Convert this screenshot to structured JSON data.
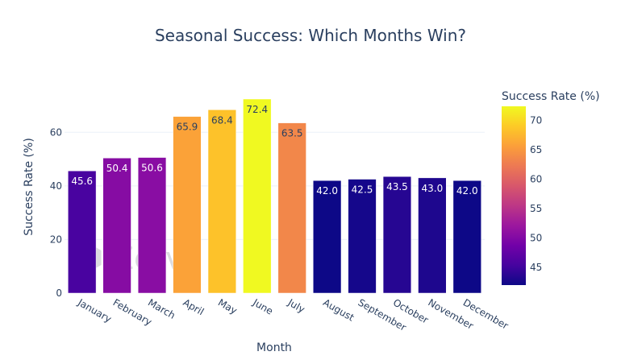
{
  "chart_data": {
    "type": "bar",
    "title": "Seasonal Success: Which Months Win?",
    "xlabel": "Month",
    "ylabel": "Success Rate (%)",
    "categories": [
      "January",
      "February",
      "March",
      "April",
      "May",
      "June",
      "July",
      "August",
      "September",
      "October",
      "November",
      "December"
    ],
    "values": [
      45.6,
      50.4,
      50.6,
      65.9,
      68.4,
      72.4,
      63.5,
      42.0,
      42.5,
      43.5,
      43.0,
      42.0
    ],
    "value_labels": [
      "45.6",
      "50.4",
      "50.6",
      "65.9",
      "68.4",
      "72.4",
      "63.5",
      "42.0",
      "42.5",
      "43.5",
      "43.0",
      "42.0"
    ],
    "ylim": [
      0,
      75.7
    ],
    "yticks": [
      0,
      20,
      40,
      60
    ],
    "ytick_labels": [
      "0",
      "20",
      "40",
      "60"
    ],
    "grid": true,
    "colorscale": "plasma",
    "colorbar": {
      "title": "Success Rate (%)",
      "range": [
        42.0,
        72.4
      ],
      "ticks": [
        45,
        50,
        55,
        60,
        65,
        70
      ],
      "tick_labels": [
        "45",
        "50",
        "55",
        "60",
        "65",
        "70"
      ]
    }
  },
  "watermark": "Zerve"
}
